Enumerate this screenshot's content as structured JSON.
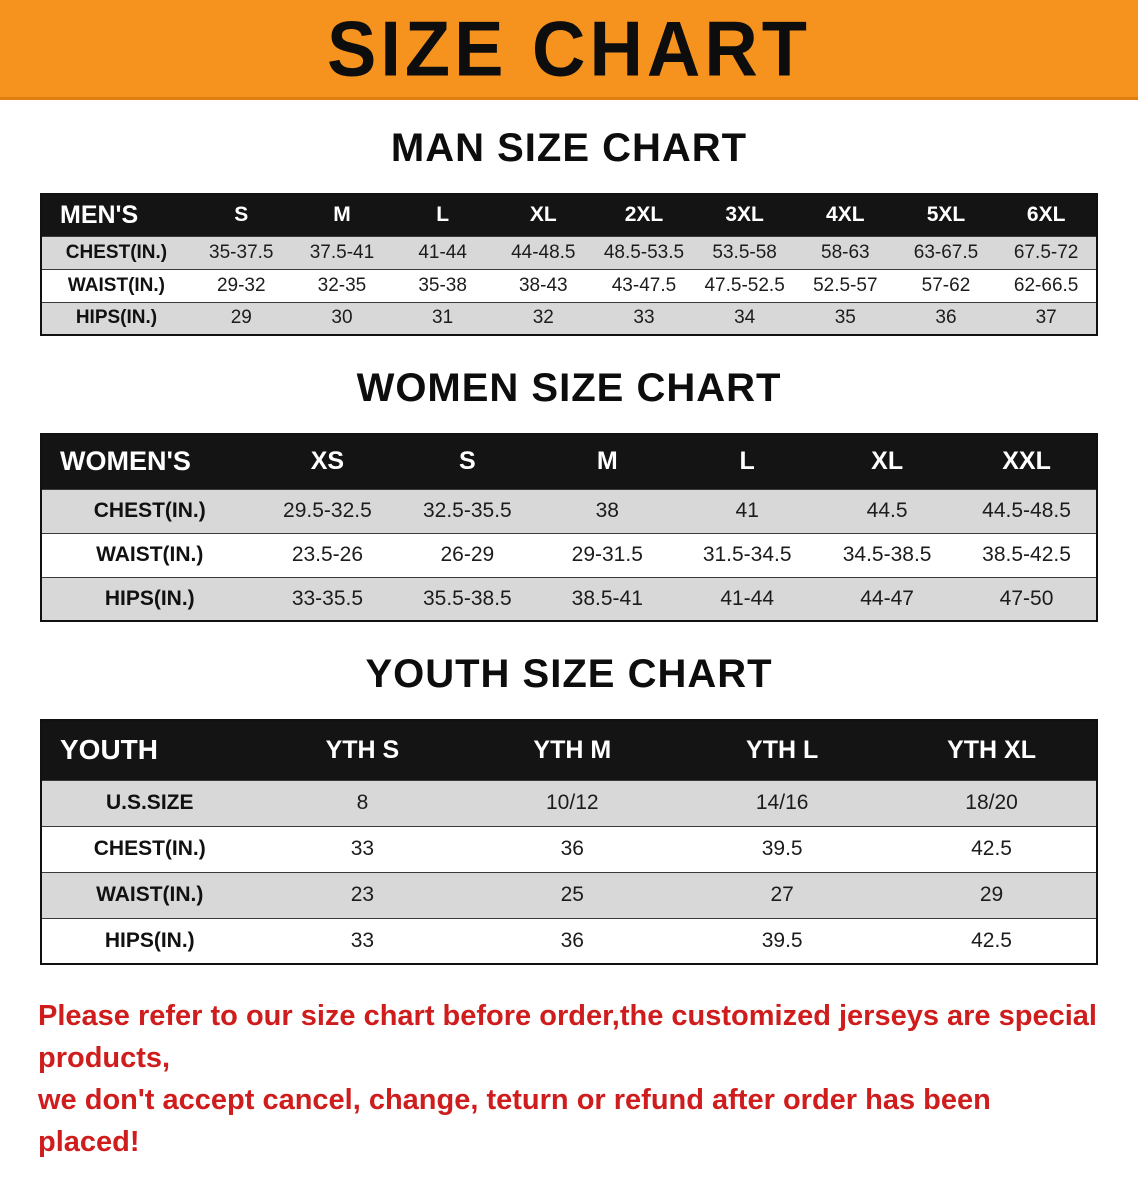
{
  "banner": {
    "title": "SIZE CHART",
    "bg_color": "#f6921e"
  },
  "sections": [
    {
      "id": "men",
      "heading": "MAN SIZE CHART",
      "table": {
        "header": [
          "MEN'S",
          "S",
          "M",
          "L",
          "XL",
          "2XL",
          "3XL",
          "4XL",
          "5XL",
          "6XL"
        ],
        "rows": [
          [
            "CHEST(IN.)",
            "35-37.5",
            "37.5-41",
            "41-44",
            "44-48.5",
            "48.5-53.5",
            "53.5-58",
            "58-63",
            "63-67.5",
            "67.5-72"
          ],
          [
            "WAIST(IN.)",
            "29-32",
            "32-35",
            "35-38",
            "38-43",
            "43-47.5",
            "47.5-52.5",
            "52.5-57",
            "57-62",
            "62-66.5"
          ],
          [
            "HIPS(IN.)",
            "29",
            "30",
            "31",
            "32",
            "33",
            "34",
            "35",
            "36",
            "37"
          ]
        ]
      }
    },
    {
      "id": "women",
      "heading": "WOMEN SIZE CHART",
      "table": {
        "header": [
          "WOMEN'S",
          "XS",
          "S",
          "M",
          "L",
          "XL",
          "XXL"
        ],
        "rows": [
          [
            "CHEST(IN.)",
            "29.5-32.5",
            "32.5-35.5",
            "38",
            "41",
            "44.5",
            "44.5-48.5"
          ],
          [
            "WAIST(IN.)",
            "23.5-26",
            "26-29",
            "29-31.5",
            "31.5-34.5",
            "34.5-38.5",
            "38.5-42.5"
          ],
          [
            "HIPS(IN.)",
            "33-35.5",
            "35.5-38.5",
            "38.5-41",
            "41-44",
            "44-47",
            "47-50"
          ]
        ]
      }
    },
    {
      "id": "youth",
      "heading": "YOUTH SIZE CHART",
      "table": {
        "header": [
          "YOUTH",
          "YTH S",
          "YTH M",
          "YTH L",
          "YTH XL"
        ],
        "rows": [
          [
            "U.S.SIZE",
            "8",
            "10/12",
            "14/16",
            "18/20"
          ],
          [
            "CHEST(IN.)",
            "33",
            "36",
            "39.5",
            "42.5"
          ],
          [
            "WAIST(IN.)",
            "23",
            "25",
            "27",
            "29"
          ],
          [
            "HIPS(IN.)",
            "33",
            "36",
            "39.5",
            "42.5"
          ]
        ]
      }
    }
  ],
  "disclaimer": {
    "color": "#cf1d1d",
    "line1": "Please refer to our size chart before order,the customized jerseys are special products,",
    "line2": "we don't accept cancel, change, teturn or refund after order has been placed!"
  }
}
